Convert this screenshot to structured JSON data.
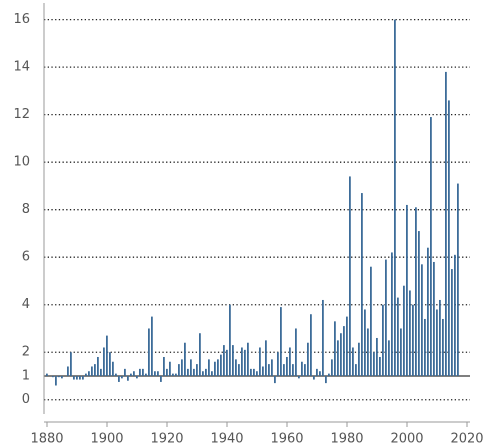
{
  "chart_data": {
    "type": "bar",
    "color": "#3d6c99",
    "baseline": 1,
    "grid": true,
    "x": [
      1880,
      1881,
      1882,
      1883,
      1884,
      1885,
      1886,
      1887,
      1888,
      1889,
      1890,
      1891,
      1892,
      1893,
      1894,
      1895,
      1896,
      1897,
      1898,
      1899,
      1900,
      1901,
      1902,
      1903,
      1904,
      1905,
      1906,
      1907,
      1908,
      1909,
      1910,
      1911,
      1912,
      1913,
      1914,
      1915,
      1916,
      1917,
      1918,
      1919,
      1920,
      1921,
      1922,
      1923,
      1924,
      1925,
      1926,
      1927,
      1928,
      1929,
      1930,
      1931,
      1932,
      1933,
      1934,
      1935,
      1936,
      1937,
      1938,
      1939,
      1940,
      1941,
      1942,
      1943,
      1944,
      1945,
      1946,
      1947,
      1948,
      1949,
      1950,
      1951,
      1952,
      1953,
      1954,
      1955,
      1956,
      1957,
      1958,
      1959,
      1960,
      1961,
      1962,
      1963,
      1964,
      1965,
      1966,
      1967,
      1968,
      1969,
      1970,
      1971,
      1972,
      1973,
      1974,
      1975,
      1976,
      1977,
      1978,
      1979,
      1980,
      1981,
      1982,
      1983,
      1984,
      1985,
      1986,
      1987,
      1988,
      1989,
      1990,
      1991,
      1992,
      1993,
      1994,
      1995,
      1996,
      1997,
      1998,
      1999,
      2000,
      2001,
      2002,
      2003,
      2004,
      2005,
      2006,
      2007,
      2008,
      2009,
      2010,
      2011,
      2012,
      2013,
      2014,
      2015,
      2016,
      2017
    ],
    "values": [
      1.1,
      1.0,
      0.95,
      0.6,
      0.95,
      0.9,
      1.0,
      1.4,
      2.0,
      0.85,
      0.85,
      0.85,
      0.85,
      1.1,
      1.2,
      1.4,
      1.5,
      1.8,
      1.3,
      2.2,
      2.7,
      2.0,
      1.6,
      1.1,
      0.75,
      0.9,
      1.3,
      0.8,
      1.1,
      1.2,
      0.9,
      1.3,
      1.3,
      1.1,
      3.0,
      3.5,
      1.2,
      1.2,
      0.75,
      1.8,
      1.3,
      1.6,
      1.1,
      1.1,
      1.5,
      1.7,
      2.4,
      1.3,
      1.7,
      1.3,
      1.5,
      2.8,
      1.2,
      1.3,
      1.7,
      1.2,
      1.6,
      1.7,
      1.9,
      2.3,
      2.1,
      4.0,
      2.3,
      1.7,
      1.5,
      2.2,
      2.1,
      2.4,
      1.3,
      1.3,
      1.2,
      2.2,
      1.4,
      2.5,
      1.5,
      1.7,
      0.7,
      2.0,
      3.9,
      1.5,
      1.8,
      2.2,
      1.5,
      3.0,
      0.9,
      1.6,
      1.5,
      2.4,
      3.6,
      0.85,
      1.3,
      1.2,
      4.2,
      0.7,
      1.1,
      1.7,
      3.3,
      2.5,
      2.8,
      3.1,
      3.5,
      9.4,
      2.2,
      1.5,
      2.4,
      8.7,
      3.8,
      3.0,
      5.6,
      2.0,
      2.6,
      1.8,
      4.0,
      5.9,
      2.5,
      6.2,
      16.0,
      4.3,
      3.0,
      4.8,
      8.2,
      4.6,
      4.0,
      8.1,
      7.1,
      5.7,
      3.4,
      6.4,
      11.9,
      5.8,
      3.8,
      4.2,
      3.4,
      13.8,
      12.6,
      5.5,
      6.1,
      9.1
    ],
    "xlim": [
      1879,
      2021
    ],
    "xticks": [
      1880,
      1900,
      1920,
      1940,
      1960,
      1980,
      2000,
      2020
    ],
    "ylim": [
      -0.6,
      16.7
    ],
    "yticks": [
      0,
      1,
      2,
      4,
      6,
      8,
      10,
      12,
      14,
      16
    ]
  }
}
